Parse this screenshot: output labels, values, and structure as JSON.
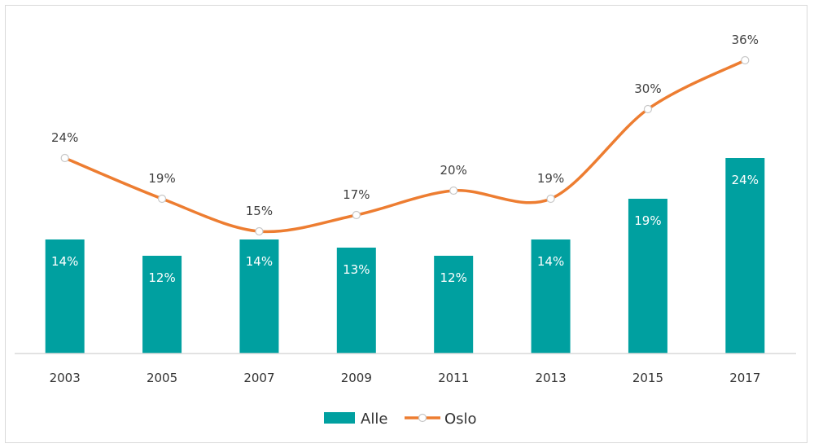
{
  "chart_data": {
    "type": "bar",
    "categories": [
      "2003",
      "2005",
      "2007",
      "2009",
      "2011",
      "2013",
      "2015",
      "2017"
    ],
    "series": [
      {
        "name": "Alle",
        "type": "bar",
        "values": [
          14,
          12,
          14,
          13,
          12,
          14,
          19,
          24
        ],
        "labels": [
          "14%",
          "12%",
          "14%",
          "13%",
          "12%",
          "14%",
          "19%",
          "24%"
        ],
        "color": "#00A0A0"
      },
      {
        "name": "Oslo",
        "type": "line",
        "smooth": true,
        "values": [
          24,
          19,
          15,
          17,
          20,
          19,
          30,
          36
        ],
        "labels": [
          "24%",
          "19%",
          "15%",
          "17%",
          "20%",
          "19%",
          "30%",
          "36%"
        ],
        "color": "#ED7D31"
      }
    ],
    "title": "",
    "xlabel": "",
    "ylabel": "",
    "ylim": [
      0,
      38
    ],
    "grid": false,
    "legend": "bottom-center"
  }
}
